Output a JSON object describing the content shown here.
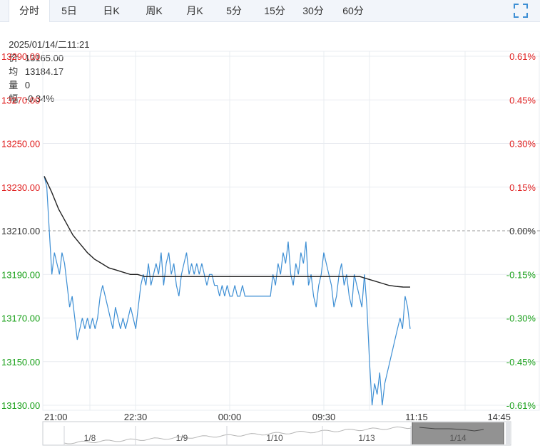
{
  "tabs": [
    {
      "label": "分时",
      "active": true
    },
    {
      "label": "5日",
      "active": false
    },
    {
      "label": "日K",
      "active": false
    },
    {
      "label": "周K",
      "active": false
    },
    {
      "label": "月K",
      "active": false
    },
    {
      "label": "5分",
      "active": false
    },
    {
      "label": "15分",
      "active": false
    },
    {
      "label": "30分",
      "active": false
    },
    {
      "label": "60分",
      "active": false
    }
  ],
  "fullscreen_icon": "expand-icon",
  "info": {
    "datetime": "2025/01/14/二11:21",
    "price_label": "价",
    "price": "13165.00",
    "avg_label": "均",
    "avg": "13184.17",
    "volume_label": "量",
    "volume": "0",
    "change_label": "幅",
    "change": "-0.34%"
  },
  "colors": {
    "up": "#e02020",
    "down": "#18a018",
    "neutral": "#333333",
    "price_line": "#3e8fd4",
    "avg_line": "#222222",
    "grid": "#e9ecf1",
    "baseline": "#999999"
  },
  "chart_data": {
    "type": "line",
    "title": "",
    "ylim": [
      13130,
      13290
    ],
    "baseline": 13210,
    "y_ticks_left": [
      "13290.00",
      "13270.00",
      "13250.00",
      "13230.00",
      "13210.00",
      "13190.00",
      "13170.00",
      "13150.00",
      "13130.00"
    ],
    "y_ticks_right": [
      "0.61%",
      "0.45%",
      "0.30%",
      "0.15%",
      "0.00%",
      "-0.15%",
      "-0.30%",
      "-0.45%",
      "-0.61%"
    ],
    "x_ticks": [
      "21:00",
      "22:30",
      "00:00",
      "09:30",
      "11:15",
      "14:45"
    ],
    "series": [
      {
        "role": "price",
        "values": [
          13235,
          13230,
          13210,
          13190,
          13200,
          13195,
          13190,
          13200,
          13195,
          13185,
          13175,
          13180,
          13170,
          13160,
          13165,
          13170,
          13165,
          13170,
          13165,
          13170,
          13165,
          13170,
          13180,
          13185,
          13180,
          13175,
          13170,
          13165,
          13175,
          13170,
          13165,
          13170,
          13165,
          13170,
          13175,
          13170,
          13165,
          13175,
          13185,
          13190,
          13185,
          13195,
          13185,
          13190,
          13195,
          13190,
          13200,
          13185,
          13195,
          13200,
          13190,
          13195,
          13185,
          13180,
          13190,
          13195,
          13200,
          13190,
          13195,
          13190,
          13195,
          13190,
          13195,
          13190,
          13185,
          13190,
          13190,
          13185,
          13185,
          13180,
          13185,
          13180,
          13185,
          13180,
          13180,
          13185,
          13180,
          13180,
          13185,
          13180,
          13180,
          13180,
          13180,
          13180,
          13180,
          13180,
          13180,
          13180,
          13180,
          13180,
          13190,
          13185,
          13195,
          13190,
          13200,
          13195,
          13205,
          13190,
          13185,
          13195,
          13190,
          13200,
          13195,
          13205,
          13185,
          13190,
          13180,
          13175,
          13185,
          13190,
          13200,
          13195,
          13190,
          13185,
          13175,
          13180,
          13190,
          13195,
          13185,
          13190,
          13180,
          13175,
          13190,
          13185,
          13180,
          13175,
          13190,
          13175,
          13150,
          13130,
          13140,
          13135,
          13145,
          13130,
          13140,
          13145,
          13150,
          13155,
          13160,
          13165,
          13170,
          13165,
          13180,
          13175,
          13165
        ]
      },
      {
        "role": "average",
        "values": [
          13235,
          13228,
          13220,
          13214,
          13208,
          13204,
          13200,
          13197,
          13195,
          13193,
          13192,
          13191,
          13190,
          13190,
          13189,
          13189,
          13189,
          13189,
          13189,
          13189,
          13189,
          13189,
          13189,
          13189,
          13189,
          13189,
          13189,
          13189,
          13189,
          13189,
          13189,
          13189,
          13189,
          13189,
          13189,
          13189,
          13189,
          13189,
          13189,
          13189,
          13189,
          13189,
          13189,
          13189,
          13189,
          13188,
          13187,
          13186,
          13185,
          13184.5,
          13184.2,
          13184.17
        ]
      }
    ]
  },
  "navigator": {
    "dates": [
      "1/8",
      "1/9",
      "1/10",
      "1/13",
      "1/14"
    ]
  }
}
